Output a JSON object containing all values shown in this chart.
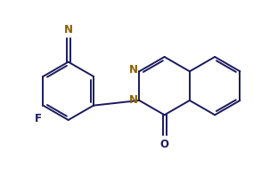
{
  "bg_color": "#ffffff",
  "bond_color": "#1a1a5e",
  "atom_color_N": "#8B6000",
  "atom_color_O": "#1a1a5e",
  "line_width": 1.4,
  "figsize": [
    2.84,
    2.16
  ],
  "dpi": 100,
  "xlim": [
    0,
    10
  ],
  "ylim": [
    0,
    7.6
  ]
}
